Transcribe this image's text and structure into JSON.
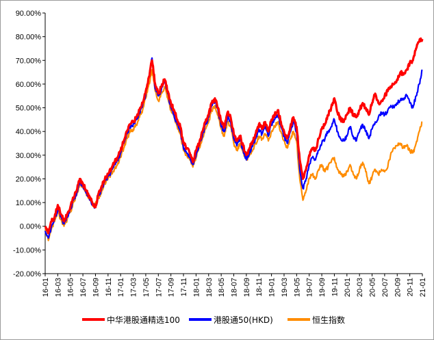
{
  "chart_data": {
    "type": "line",
    "title": "",
    "xlabel": "",
    "ylabel": "",
    "ylim": [
      -0.2,
      0.9
    ],
    "y_tick_values": [
      -0.2,
      -0.1,
      0.0,
      0.1,
      0.2,
      0.3,
      0.4,
      0.5,
      0.6,
      0.7,
      0.8,
      0.9
    ],
    "y_tick_labels": [
      "-20.00%",
      "-10.00%",
      "0.00%",
      "10.00%",
      "20.00%",
      "30.00%",
      "40.00%",
      "50.00%",
      "60.00%",
      "70.00%",
      "80.00%",
      "90.00%"
    ],
    "x_tick_labels": [
      "16-01",
      "16-03",
      "16-05",
      "16-07",
      "16-09",
      "16-11",
      "17-01",
      "17-03",
      "17-05",
      "17-07",
      "17-09",
      "17-11",
      "18-01",
      "18-03",
      "18-05",
      "18-07",
      "18-09",
      "18-11",
      "19-01",
      "19-03",
      "19-05",
      "19-07",
      "19-09",
      "19-11",
      "20-01",
      "20-03",
      "20-05",
      "20-07",
      "20-09",
      "20-11",
      "21-01"
    ],
    "grid": false,
    "legend_position": "bottom",
    "x_index_note": "x values are month indices from 16-01 (0) to 21-01 (60)",
    "series": [
      {
        "name": "中华港股通精选100",
        "color": "#ff0000",
        "x": [
          0,
          0.5,
          1,
          1.5,
          2,
          2.5,
          3,
          3.5,
          4,
          4.5,
          5,
          5.5,
          6,
          6.5,
          7,
          7.5,
          8,
          8.5,
          9,
          9.5,
          10,
          10.5,
          11,
          11.5,
          12,
          12.5,
          13,
          13.5,
          14,
          14.5,
          15,
          15.5,
          16,
          16.5,
          17,
          17.5,
          18,
          18.5,
          19,
          19.5,
          20,
          20.5,
          21,
          21.5,
          22,
          22.5,
          23,
          23.5,
          24,
          24.5,
          25,
          25.5,
          26,
          26.5,
          27,
          27.5,
          28,
          28.5,
          29,
          29.5,
          30,
          30.5,
          31,
          31.5,
          32,
          32.5,
          33,
          33.5,
          34,
          34.5,
          35,
          35.5,
          36,
          36.5,
          37,
          37.5,
          38,
          38.5,
          39,
          39.5,
          40,
          40.5,
          41,
          41.5,
          42,
          42.5,
          43,
          43.5,
          44,
          44.5,
          45,
          45.5,
          46,
          46.5,
          47,
          47.5,
          48,
          48.5,
          49,
          49.5,
          50,
          50.5,
          51,
          51.5,
          52,
          52.5,
          53,
          53.5,
          54,
          54.5,
          55,
          55.5,
          56,
          56.5,
          57,
          57.5,
          58,
          58.5,
          59,
          59.5,
          60
        ],
        "y": [
          0.0,
          -0.03,
          0.02,
          0.04,
          0.09,
          0.05,
          0.02,
          0.05,
          0.08,
          0.12,
          0.15,
          0.2,
          0.18,
          0.15,
          0.13,
          0.1,
          0.08,
          0.14,
          0.17,
          0.2,
          0.22,
          0.24,
          0.27,
          0.29,
          0.32,
          0.36,
          0.4,
          0.43,
          0.44,
          0.46,
          0.49,
          0.52,
          0.57,
          0.63,
          0.7,
          0.6,
          0.56,
          0.59,
          0.62,
          0.57,
          0.52,
          0.49,
          0.45,
          0.42,
          0.35,
          0.33,
          0.31,
          0.27,
          0.32,
          0.35,
          0.4,
          0.44,
          0.47,
          0.52,
          0.54,
          0.5,
          0.44,
          0.42,
          0.48,
          0.46,
          0.39,
          0.36,
          0.38,
          0.34,
          0.3,
          0.33,
          0.36,
          0.39,
          0.43,
          0.41,
          0.44,
          0.4,
          0.45,
          0.47,
          0.49,
          0.44,
          0.4,
          0.37,
          0.42,
          0.46,
          0.42,
          0.28,
          0.2,
          0.24,
          0.3,
          0.33,
          0.32,
          0.37,
          0.41,
          0.43,
          0.47,
          0.5,
          0.54,
          0.48,
          0.45,
          0.44,
          0.47,
          0.5,
          0.47,
          0.46,
          0.49,
          0.52,
          0.5,
          0.47,
          0.52,
          0.56,
          0.52,
          0.53,
          0.55,
          0.57,
          0.59,
          0.6,
          0.62,
          0.65,
          0.64,
          0.66,
          0.69,
          0.7,
          0.75,
          0.78,
          0.79
        ]
      },
      {
        "name": "港股通50(HKD)",
        "color": "#0000ff",
        "x": [
          0,
          0.5,
          1,
          1.5,
          2,
          2.5,
          3,
          3.5,
          4,
          4.5,
          5,
          5.5,
          6,
          6.5,
          7,
          7.5,
          8,
          8.5,
          9,
          9.5,
          10,
          10.5,
          11,
          11.5,
          12,
          12.5,
          13,
          13.5,
          14,
          14.5,
          15,
          15.5,
          16,
          16.5,
          17,
          17.5,
          18,
          18.5,
          19,
          19.5,
          20,
          20.5,
          21,
          21.5,
          22,
          22.5,
          23,
          23.5,
          24,
          24.5,
          25,
          25.5,
          26,
          26.5,
          27,
          27.5,
          28,
          28.5,
          29,
          29.5,
          30,
          30.5,
          31,
          31.5,
          32,
          32.5,
          33,
          33.5,
          34,
          34.5,
          35,
          35.5,
          36,
          36.5,
          37,
          37.5,
          38,
          38.5,
          39,
          39.5,
          40,
          40.5,
          41,
          41.5,
          42,
          42.5,
          43,
          43.5,
          44,
          44.5,
          45,
          45.5,
          46,
          46.5,
          47,
          47.5,
          48,
          48.5,
          49,
          49.5,
          50,
          50.5,
          51,
          51.5,
          52,
          52.5,
          53,
          53.5,
          54,
          54.5,
          55,
          55.5,
          56,
          56.5,
          57,
          57.5,
          58,
          58.5,
          59,
          59.5,
          60
        ],
        "y": [
          -0.02,
          -0.05,
          0.0,
          0.03,
          0.07,
          0.04,
          0.01,
          0.04,
          0.07,
          0.11,
          0.14,
          0.19,
          0.17,
          0.14,
          0.12,
          0.09,
          0.08,
          0.13,
          0.16,
          0.19,
          0.21,
          0.23,
          0.26,
          0.28,
          0.31,
          0.35,
          0.39,
          0.42,
          0.43,
          0.45,
          0.48,
          0.51,
          0.56,
          0.63,
          0.71,
          0.58,
          0.55,
          0.58,
          0.61,
          0.56,
          0.5,
          0.47,
          0.43,
          0.4,
          0.33,
          0.31,
          0.29,
          0.26,
          0.3,
          0.34,
          0.38,
          0.43,
          0.46,
          0.51,
          0.53,
          0.49,
          0.42,
          0.4,
          0.46,
          0.44,
          0.37,
          0.34,
          0.37,
          0.32,
          0.28,
          0.31,
          0.34,
          0.37,
          0.41,
          0.39,
          0.42,
          0.38,
          0.43,
          0.45,
          0.47,
          0.42,
          0.38,
          0.35,
          0.4,
          0.44,
          0.4,
          0.24,
          0.16,
          0.2,
          0.26,
          0.29,
          0.28,
          0.32,
          0.35,
          0.37,
          0.4,
          0.42,
          0.45,
          0.4,
          0.37,
          0.36,
          0.38,
          0.42,
          0.38,
          0.36,
          0.4,
          0.43,
          0.4,
          0.37,
          0.41,
          0.44,
          0.46,
          0.48,
          0.47,
          0.49,
          0.51,
          0.5,
          0.52,
          0.53,
          0.54,
          0.55,
          0.52,
          0.5,
          0.55,
          0.6,
          0.66
        ]
      },
      {
        "name": "恒生指数",
        "color": "#ff8c00",
        "x": [
          0,
          0.5,
          1,
          1.5,
          2,
          2.5,
          3,
          3.5,
          4,
          4.5,
          5,
          5.5,
          6,
          6.5,
          7,
          7.5,
          8,
          8.5,
          9,
          9.5,
          10,
          10.5,
          11,
          11.5,
          12,
          12.5,
          13,
          13.5,
          14,
          14.5,
          15,
          15.5,
          16,
          16.5,
          17,
          17.5,
          18,
          18.5,
          19,
          19.5,
          20,
          20.5,
          21,
          21.5,
          22,
          22.5,
          23,
          23.5,
          24,
          24.5,
          25,
          25.5,
          26,
          26.5,
          27,
          27.5,
          28,
          28.5,
          29,
          29.5,
          30,
          30.5,
          31,
          31.5,
          32,
          32.5,
          33,
          33.5,
          34,
          34.5,
          35,
          35.5,
          36,
          36.5,
          37,
          37.5,
          38,
          38.5,
          39,
          39.5,
          40,
          40.5,
          41,
          41.5,
          42,
          42.5,
          43,
          43.5,
          44,
          44.5,
          45,
          45.5,
          46,
          46.5,
          47,
          47.5,
          48,
          48.5,
          49,
          49.5,
          50,
          50.5,
          51,
          51.5,
          52,
          52.5,
          53,
          53.5,
          54,
          54.5,
          55,
          55.5,
          56,
          56.5,
          57,
          57.5,
          58,
          58.5,
          59,
          59.5,
          60
        ],
        "y": [
          -0.01,
          -0.06,
          -0.01,
          0.02,
          0.06,
          0.03,
          0.0,
          0.03,
          0.06,
          0.1,
          0.13,
          0.18,
          0.17,
          0.14,
          0.12,
          0.09,
          0.09,
          0.12,
          0.15,
          0.18,
          0.2,
          0.22,
          0.24,
          0.26,
          0.29,
          0.33,
          0.37,
          0.4,
          0.41,
          0.43,
          0.46,
          0.49,
          0.54,
          0.6,
          0.66,
          0.57,
          0.53,
          0.56,
          0.59,
          0.54,
          0.49,
          0.46,
          0.42,
          0.39,
          0.32,
          0.3,
          0.28,
          0.25,
          0.29,
          0.33,
          0.37,
          0.41,
          0.44,
          0.49,
          0.51,
          0.47,
          0.41,
          0.38,
          0.44,
          0.42,
          0.35,
          0.32,
          0.35,
          0.31,
          0.28,
          0.3,
          0.32,
          0.35,
          0.38,
          0.37,
          0.39,
          0.36,
          0.4,
          0.42,
          0.44,
          0.4,
          0.36,
          0.33,
          0.37,
          0.4,
          0.36,
          0.2,
          0.11,
          0.15,
          0.2,
          0.22,
          0.2,
          0.24,
          0.26,
          0.23,
          0.25,
          0.27,
          0.29,
          0.24,
          0.22,
          0.21,
          0.23,
          0.26,
          0.22,
          0.2,
          0.24,
          0.27,
          0.23,
          0.18,
          0.21,
          0.24,
          0.22,
          0.24,
          0.23,
          0.25,
          0.31,
          0.33,
          0.34,
          0.35,
          0.33,
          0.34,
          0.32,
          0.31,
          0.35,
          0.4,
          0.44
        ]
      }
    ]
  }
}
